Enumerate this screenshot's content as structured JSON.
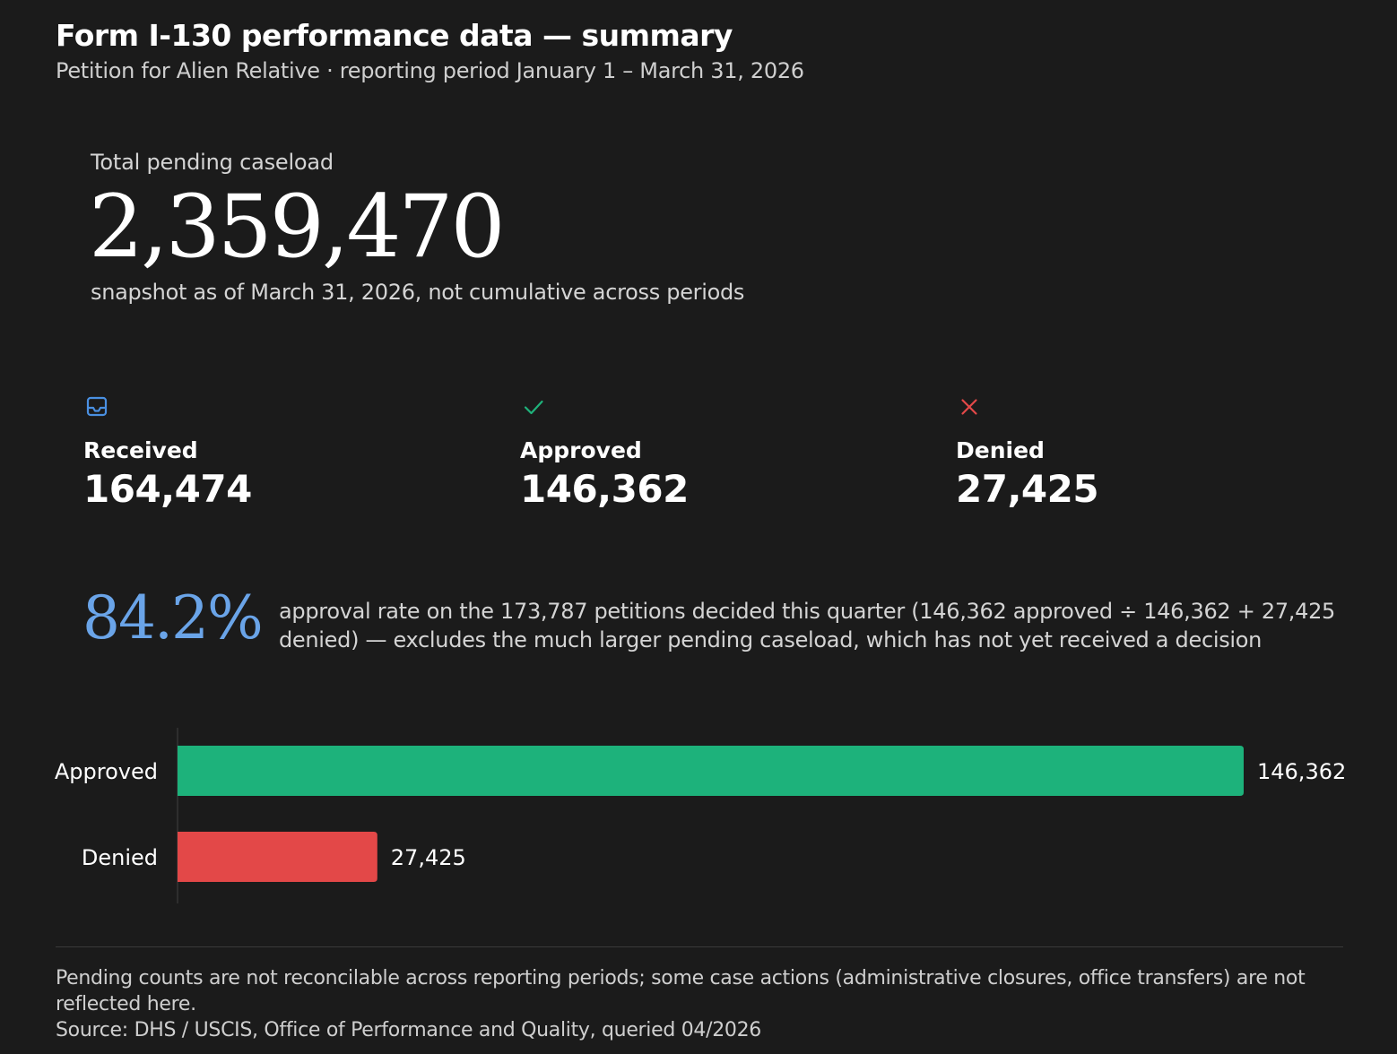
{
  "header": {
    "title": "Form I-130 performance data — summary",
    "subtitle": "Petition for Alien Relative · reporting period January 1 – March 31, 2026"
  },
  "hero": {
    "label": "Total pending caseload",
    "value": "2,359,470",
    "note": "snapshot as of March 31, 2026, not cumulative across periods"
  },
  "stats": [
    {
      "icon": "inbox-icon",
      "label": "Received",
      "value": "164,474",
      "color": "#4a90e2"
    },
    {
      "icon": "check-icon",
      "label": "Approved",
      "value": "146,362",
      "color": "#1fb27b"
    },
    {
      "icon": "close-icon",
      "label": "Denied",
      "value": "27,425",
      "color": "#e34848"
    }
  ],
  "rate": {
    "value": "84.2%",
    "description": "approval rate on the 173,787 petitions decided this quarter (146,362 approved ÷ 146,362 + 27,425 denied) — excludes the much larger pending caseload, which has not yet received a decision",
    "color": "#6aa4e8"
  },
  "chart_data": {
    "type": "bar",
    "orientation": "horizontal",
    "categories": [
      "Approved",
      "Denied"
    ],
    "values": [
      146362,
      27425
    ],
    "value_labels": [
      "146,362",
      "27,425"
    ],
    "colors": [
      "#1db27b",
      "#e34848"
    ],
    "xlim": [
      0,
      146362
    ],
    "grid": false,
    "legend": "none"
  },
  "footer": {
    "note": "Pending counts are not reconcilable across reporting periods; some case actions (administrative closures, office transfers) are not reflected here.",
    "source": "Source: DHS / USCIS, Office of Performance and Quality, queried 04/2026"
  }
}
